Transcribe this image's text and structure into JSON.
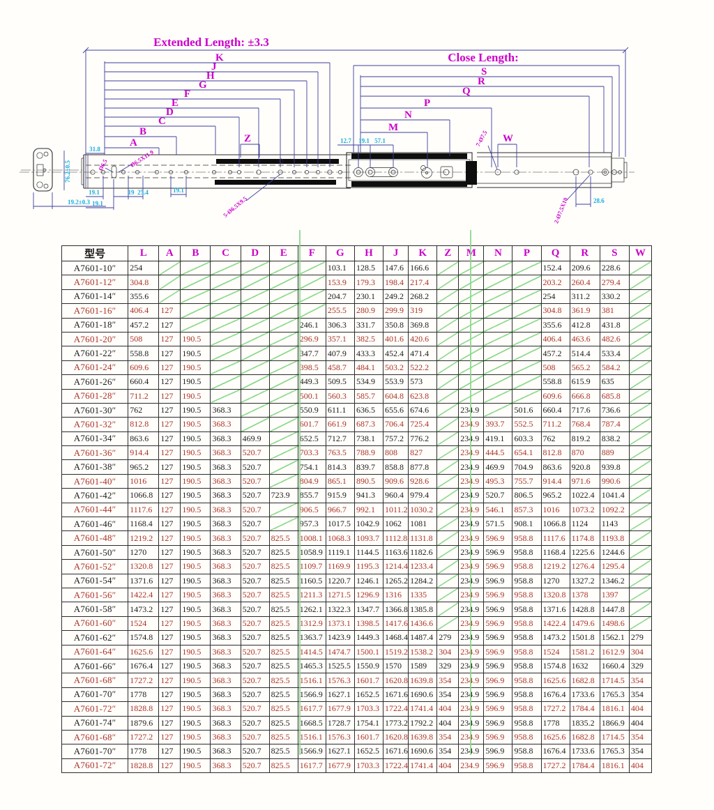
{
  "colors": {
    "accent_magenta": "#cc00cc",
    "dim_cyan": "#17aee0",
    "dim_navy": "#3d3d9e",
    "row_red": "#ab3226",
    "row_dark": "#1b1b1b",
    "slash_green": "#8fd98f"
  },
  "diagram": {
    "extended_label": "Extended Length: ±3.3",
    "close_label": "Close Length:",
    "left_letters": [
      "A",
      "B",
      "C",
      "D",
      "E",
      "F",
      "G",
      "H",
      "J",
      "K"
    ],
    "right_letters": [
      "M",
      "N",
      "P",
      "Q",
      "R",
      "S"
    ],
    "z_label": "Z",
    "w_label": "W",
    "dims": {
      "d31_8": "31.8",
      "d19_1_a": "19.1",
      "d19_1_b": "19.1",
      "d19": "19",
      "d25_4": "25.4",
      "d19_1_c": "19.1",
      "d12_7": "12.7",
      "d19_1_d": "19.1",
      "d57_1": "57.1",
      "d28_6": "28.6"
    },
    "cross_section": {
      "height": "76.2±0.5",
      "thickness": "19.2±0.3"
    },
    "hole_labels": {
      "h_dia65": "Ø6.5",
      "h_dia65x119": "Ø6.5X11.9",
      "h_5_65x95": "5-Ø6.5X9.5",
      "h_7_75": "7-Ø7.5",
      "h_2_75x10": "2-Ø7.5X10"
    }
  },
  "table": {
    "title_col": "型号",
    "headers": [
      "L",
      "A",
      "B",
      "C",
      "D",
      "E",
      "F",
      "G",
      "H",
      "J",
      "K",
      "Z",
      "M",
      "N",
      "P",
      "Q",
      "R",
      "S",
      "W"
    ],
    "rows": [
      {
        "model": "A7601-10″",
        "tone": "dark",
        "v": [
          "254",
          "",
          "",
          "",
          "",
          "",
          "",
          "103.1",
          "128.5",
          "147.6",
          "166.6",
          "",
          "",
          "",
          "",
          "152.4",
          "209.6",
          "228.6",
          ""
        ]
      },
      {
        "model": "A7601-12″",
        "tone": "red",
        "v": [
          "304.8",
          "",
          "",
          "",
          "",
          "",
          "",
          "153.9",
          "179.3",
          "198.4",
          "217.4",
          "",
          "",
          "",
          "",
          "203.2",
          "260.4",
          "279.4",
          ""
        ]
      },
      {
        "model": "A7601-14″",
        "tone": "dark",
        "v": [
          "355.6",
          "",
          "",
          "",
          "",
          "",
          "",
          "204.7",
          "230.1",
          "249.2",
          "268.2",
          "",
          "",
          "",
          "",
          "254",
          "311.2",
          "330.2",
          ""
        ]
      },
      {
        "model": "A7601-16″",
        "tone": "red",
        "v": [
          "406.4",
          "127",
          "",
          "",
          "",
          "",
          "",
          "255.5",
          "280.9",
          "299.9",
          "319",
          "",
          "",
          "",
          "",
          "304.8",
          "361.9",
          "381",
          ""
        ]
      },
      {
        "model": "A7601-18″",
        "tone": "dark",
        "v": [
          "457.2",
          "127",
          "",
          "",
          "",
          "",
          "246.1",
          "306.3",
          "331.7",
          "350.8",
          "369.8",
          "",
          "",
          "",
          "",
          "355.6",
          "412.8",
          "431.8",
          ""
        ]
      },
      {
        "model": "A7601-20″",
        "tone": "red",
        "v": [
          "508",
          "127",
          "190.5",
          "",
          "",
          "",
          "296.9",
          "357.1",
          "382.5",
          "401.6",
          "420.6",
          "",
          "",
          "",
          "",
          "406.4",
          "463.6",
          "482.6",
          ""
        ]
      },
      {
        "model": "A7601-22″",
        "tone": "dark",
        "v": [
          "558.8",
          "127",
          "190.5",
          "",
          "",
          "",
          "347.7",
          "407.9",
          "433.3",
          "452.4",
          "471.4",
          "",
          "",
          "",
          "",
          "457.2",
          "514.4",
          "533.4",
          ""
        ]
      },
      {
        "model": "A7601-24″",
        "tone": "red",
        "v": [
          "609.6",
          "127",
          "190.5",
          "",
          "",
          "",
          "398.5",
          "458.7",
          "484.1",
          "503.2",
          "522.2",
          "",
          "",
          "",
          "",
          "508",
          "565.2",
          "584.2",
          ""
        ]
      },
      {
        "model": "A7601-26″",
        "tone": "dark",
        "v": [
          "660.4",
          "127",
          "190.5",
          "",
          "",
          "",
          "449.3",
          "509.5",
          "534.9",
          "553.9",
          "573",
          "",
          "",
          "",
          "",
          "558.8",
          "615.9",
          "635",
          ""
        ]
      },
      {
        "model": "A7601-28″",
        "tone": "red",
        "v": [
          "711.2",
          "127",
          "190.5",
          "",
          "",
          "",
          "500.1",
          "560.3",
          "585.7",
          "604.8",
          "623.8",
          "",
          "",
          "",
          "",
          "609.6",
          "666.8",
          "685.8",
          ""
        ]
      },
      {
        "model": "A7601-30″",
        "tone": "dark",
        "v": [
          "762",
          "127",
          "190.5",
          "368.3",
          "",
          "",
          "550.9",
          "611.1",
          "636.5",
          "655.6",
          "674.6",
          "",
          "234.9",
          "",
          "501.6",
          "660.4",
          "717.6",
          "736.6",
          ""
        ]
      },
      {
        "model": "A7601-32″",
        "tone": "red",
        "v": [
          "812.8",
          "127",
          "190.5",
          "368.3",
          "",
          "",
          "601.7",
          "661.9",
          "687.3",
          "706.4",
          "725.4",
          "",
          "234.9",
          "393.7",
          "552.5",
          "711.2",
          "768.4",
          "787.4",
          ""
        ]
      },
      {
        "model": "A7601-34″",
        "tone": "dark",
        "v": [
          "863.6",
          "127",
          "190.5",
          "368.3",
          "469.9",
          "",
          "652.5",
          "712.7",
          "738.1",
          "757.2",
          "776.2",
          "",
          "234.9",
          "419.1",
          "603.3",
          "762",
          "819.2",
          "838.2",
          ""
        ]
      },
      {
        "model": "A7601-36″",
        "tone": "red",
        "v": [
          "914.4",
          "127",
          "190.5",
          "368.3",
          "520.7",
          "",
          "703.3",
          "763.5",
          "788.9",
          "808",
          "827",
          "",
          "234.9",
          "444.5",
          "654.1",
          "812.8",
          "870",
          "889",
          ""
        ]
      },
      {
        "model": "A7601-38″",
        "tone": "dark",
        "v": [
          "965.2",
          "127",
          "190.5",
          "368.3",
          "520.7",
          "",
          "754.1",
          "814.3",
          "839.7",
          "858.8",
          "877.8",
          "",
          "234.9",
          "469.9",
          "704.9",
          "863.6",
          "920.8",
          "939.8",
          ""
        ]
      },
      {
        "model": "A7601-40″",
        "tone": "red",
        "v": [
          "1016",
          "127",
          "190.5",
          "368.3",
          "520.7",
          "",
          "804.9",
          "865.1",
          "890.5",
          "909.6",
          "928.6",
          "",
          "234.9",
          "495.3",
          "755.7",
          "914.4",
          "971.6",
          "990.6",
          ""
        ]
      },
      {
        "model": "A7601-42″",
        "tone": "dark",
        "v": [
          "1066.8",
          "127",
          "190.5",
          "368.3",
          "520.7",
          "723.9",
          "855.7",
          "915.9",
          "941.3",
          "960.4",
          "979.4",
          "",
          "234.9",
          "520.7",
          "806.5",
          "965.2",
          "1022.4",
          "1041.4",
          ""
        ]
      },
      {
        "model": "A7601-44″",
        "tone": "red",
        "v": [
          "1117.6",
          "127",
          "190.5",
          "368.3",
          "520.7",
          "",
          "906.5",
          "966.7",
          "992.1",
          "1011.2",
          "1030.2",
          "",
          "234.9",
          "546.1",
          "857.3",
          "1016",
          "1073.2",
          "1092.2",
          ""
        ]
      },
      {
        "model": "A7601-46″",
        "tone": "dark",
        "v": [
          "1168.4",
          "127",
          "190.5",
          "368.3",
          "520.7",
          "",
          "957.3",
          "1017.5",
          "1042.9",
          "1062",
          "1081",
          "",
          "234.9",
          "571.5",
          "908.1",
          "1066.8",
          "1124",
          "1143",
          ""
        ]
      },
      {
        "model": "A7601-48″",
        "tone": "red",
        "v": [
          "1219.2",
          "127",
          "190.5",
          "368.3",
          "520.7",
          "825.5",
          "1008.1",
          "1068.3",
          "1093.7",
          "1112.8",
          "1131.8",
          "",
          "234.9",
          "596.9",
          "958.8",
          "1117.6",
          "1174.8",
          "1193.8",
          ""
        ]
      },
      {
        "model": "A7601-50″",
        "tone": "dark",
        "v": [
          "1270",
          "127",
          "190.5",
          "368.3",
          "520.7",
          "825.5",
          "1058.9",
          "1119.1",
          "1144.5",
          "1163.6",
          "1182.6",
          "",
          "234.9",
          "596.9",
          "958.8",
          "1168.4",
          "1225.6",
          "1244.6",
          ""
        ]
      },
      {
        "model": "A7601-52″",
        "tone": "red",
        "v": [
          "1320.8",
          "127",
          "190.5",
          "368.3",
          "520.7",
          "825.5",
          "1109.7",
          "1169.9",
          "1195.3",
          "1214.4",
          "1233.4",
          "",
          "234.9",
          "596.9",
          "958.8",
          "1219.2",
          "1276.4",
          "1295.4",
          ""
        ]
      },
      {
        "model": "A7601-54″",
        "tone": "dark",
        "v": [
          "1371.6",
          "127",
          "190.5",
          "368.3",
          "520.7",
          "825.5",
          "1160.5",
          "1220.7",
          "1246.1",
          "1265.2",
          "1284.2",
          "",
          "234.9",
          "596.9",
          "958.8",
          "1270",
          "1327.2",
          "1346.2",
          ""
        ]
      },
      {
        "model": "A7601-56″",
        "tone": "red",
        "v": [
          "1422.4",
          "127",
          "190.5",
          "368.3",
          "520.7",
          "825.5",
          "1211.3",
          "1271.5",
          "1296.9",
          "1316",
          "1335",
          "",
          "234.9",
          "596.9",
          "958.8",
          "1320.8",
          "1378",
          "1397",
          ""
        ]
      },
      {
        "model": "A7601-58″",
        "tone": "dark",
        "v": [
          "1473.2",
          "127",
          "190.5",
          "368.3",
          "520.7",
          "825.5",
          "1262.1",
          "1322.3",
          "1347.7",
          "1366.8",
          "1385.8",
          "",
          "234.9",
          "596.9",
          "958.8",
          "1371.6",
          "1428.8",
          "1447.8",
          ""
        ]
      },
      {
        "model": "A7601-60″",
        "tone": "red",
        "v": [
          "1524",
          "127",
          "190.5",
          "368.3",
          "520.7",
          "825.5",
          "1312.9",
          "1373.1",
          "1398.5",
          "1417.6",
          "1436.6",
          "",
          "234.9",
          "596.9",
          "958.8",
          "1422.4",
          "1479.6",
          "1498.6",
          ""
        ]
      },
      {
        "model": "A7601-62″",
        "tone": "dark",
        "v": [
          "1574.8",
          "127",
          "190.5",
          "368.3",
          "520.7",
          "825.5",
          "1363.7",
          "1423.9",
          "1449.3",
          "1468.4",
          "1487.4",
          "279",
          "234.9",
          "596.9",
          "958.8",
          "1473.2",
          "1501.8",
          "1562.1",
          "279"
        ]
      },
      {
        "model": "A7601-64″",
        "tone": "red",
        "v": [
          "1625.6",
          "127",
          "190.5",
          "368.3",
          "520.7",
          "825.5",
          "1414.5",
          "1474.7",
          "1500.1",
          "1519.2",
          "1538.2",
          "304",
          "234.9",
          "596.9",
          "958.8",
          "1524",
          "1581.2",
          "1612.9",
          "304"
        ]
      },
      {
        "model": "A7601-66″",
        "tone": "dark",
        "v": [
          "1676.4",
          "127",
          "190.5",
          "368.3",
          "520.7",
          "825.5",
          "1465.3",
          "1525.5",
          "1550.9",
          "1570",
          "1589",
          "329",
          "234.9",
          "596.9",
          "958.8",
          "1574.8",
          "1632",
          "1660.4",
          "329"
        ]
      },
      {
        "model": "A7601-68″",
        "tone": "red",
        "v": [
          "1727.2",
          "127",
          "190.5",
          "368.3",
          "520.7",
          "825.5",
          "1516.1",
          "1576.3",
          "1601.7",
          "1620.8",
          "1639.8",
          "354",
          "234.9",
          "596.9",
          "958.8",
          "1625.6",
          "1682.8",
          "1714.5",
          "354"
        ]
      },
      {
        "model": "A7601-70″",
        "tone": "dark",
        "v": [
          "1778",
          "127",
          "190.5",
          "368.3",
          "520.7",
          "825.5",
          "1566.9",
          "1627.1",
          "1652.5",
          "1671.6",
          "1690.6",
          "354",
          "234.9",
          "596.9",
          "958.8",
          "1676.4",
          "1733.6",
          "1765.3",
          "354"
        ]
      },
      {
        "model": "A7601-72″",
        "tone": "red",
        "v": [
          "1828.8",
          "127",
          "190.5",
          "368.3",
          "520.7",
          "825.5",
          "1617.7",
          "1677.9",
          "1703.3",
          "1722.4",
          "1741.4",
          "404",
          "234.9",
          "596.9",
          "958.8",
          "1727.2",
          "1784.4",
          "1816.1",
          "404"
        ]
      },
      {
        "model": "A7601-74″",
        "tone": "dark",
        "v": [
          "1879.6",
          "127",
          "190.5",
          "368.3",
          "520.7",
          "825.5",
          "1668.5",
          "1728.7",
          "1754.1",
          "1773.2",
          "1792.2",
          "404",
          "234.9",
          "596.9",
          "958.8",
          "1778",
          "1835.2",
          "1866.9",
          "404"
        ]
      },
      {
        "model": "A7601-68″",
        "tone": "red",
        "v": [
          "1727.2",
          "127",
          "190.5",
          "368.3",
          "520.7",
          "825.5",
          "1516.1",
          "1576.3",
          "1601.7",
          "1620.8",
          "1639.8",
          "354",
          "234.9",
          "596.9",
          "958.8",
          "1625.6",
          "1682.8",
          "1714.5",
          "354"
        ]
      },
      {
        "model": "A7601-70″",
        "tone": "dark",
        "v": [
          "1778",
          "127",
          "190.5",
          "368.3",
          "520.7",
          "825.5",
          "1566.9",
          "1627.1",
          "1652.5",
          "1671.6",
          "1690.6",
          "354",
          "234.9",
          "596.9",
          "958.8",
          "1676.4",
          "1733.6",
          "1765.3",
          "354"
        ]
      },
      {
        "model": "A7601-72″",
        "tone": "red",
        "v": [
          "1828.8",
          "127",
          "190.5",
          "368.3",
          "520.7",
          "825.5",
          "1617.7",
          "1677.9",
          "1703.3",
          "1722.4",
          "1741.4",
          "404",
          "234.9",
          "596.9",
          "958.8",
          "1727.2",
          "1784.4",
          "1816.1",
          "404"
        ]
      }
    ]
  }
}
